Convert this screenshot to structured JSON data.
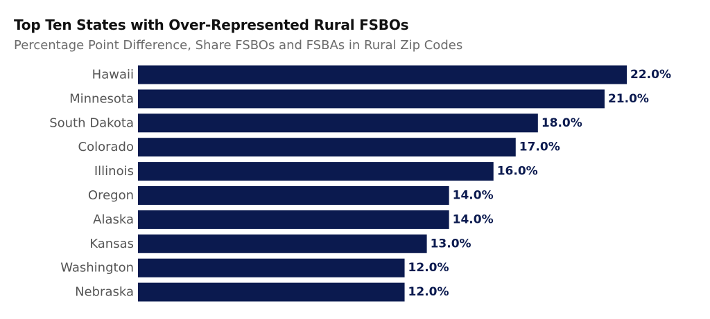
{
  "title": "Top Ten States with Over-Represented Rural FSBOs",
  "subtitle": "Percentage Point Difference, Share FSBOs and FSBAs in Rural Zip Codes",
  "colors": {
    "bar": "#0b1a4f",
    "value_label": "#0b1a4f"
  },
  "chart_data": {
    "type": "bar",
    "orientation": "horizontal",
    "categories": [
      "Hawaii",
      "Minnesota",
      "South Dakota",
      "Colorado",
      "Illinois",
      "Oregon",
      "Alaska",
      "Kansas",
      "Washington",
      "Nebraska"
    ],
    "values": [
      22.0,
      21.0,
      18.0,
      17.0,
      16.0,
      14.0,
      14.0,
      13.0,
      12.0,
      12.0
    ],
    "value_labels": [
      "22.0%",
      "21.0%",
      "18.0%",
      "17.0%",
      "16.0%",
      "14.0%",
      "14.0%",
      "13.0%",
      "12.0%",
      "12.0%"
    ],
    "unit": "%",
    "xlim": [
      0,
      22
    ],
    "grid": false,
    "legend": "none"
  }
}
